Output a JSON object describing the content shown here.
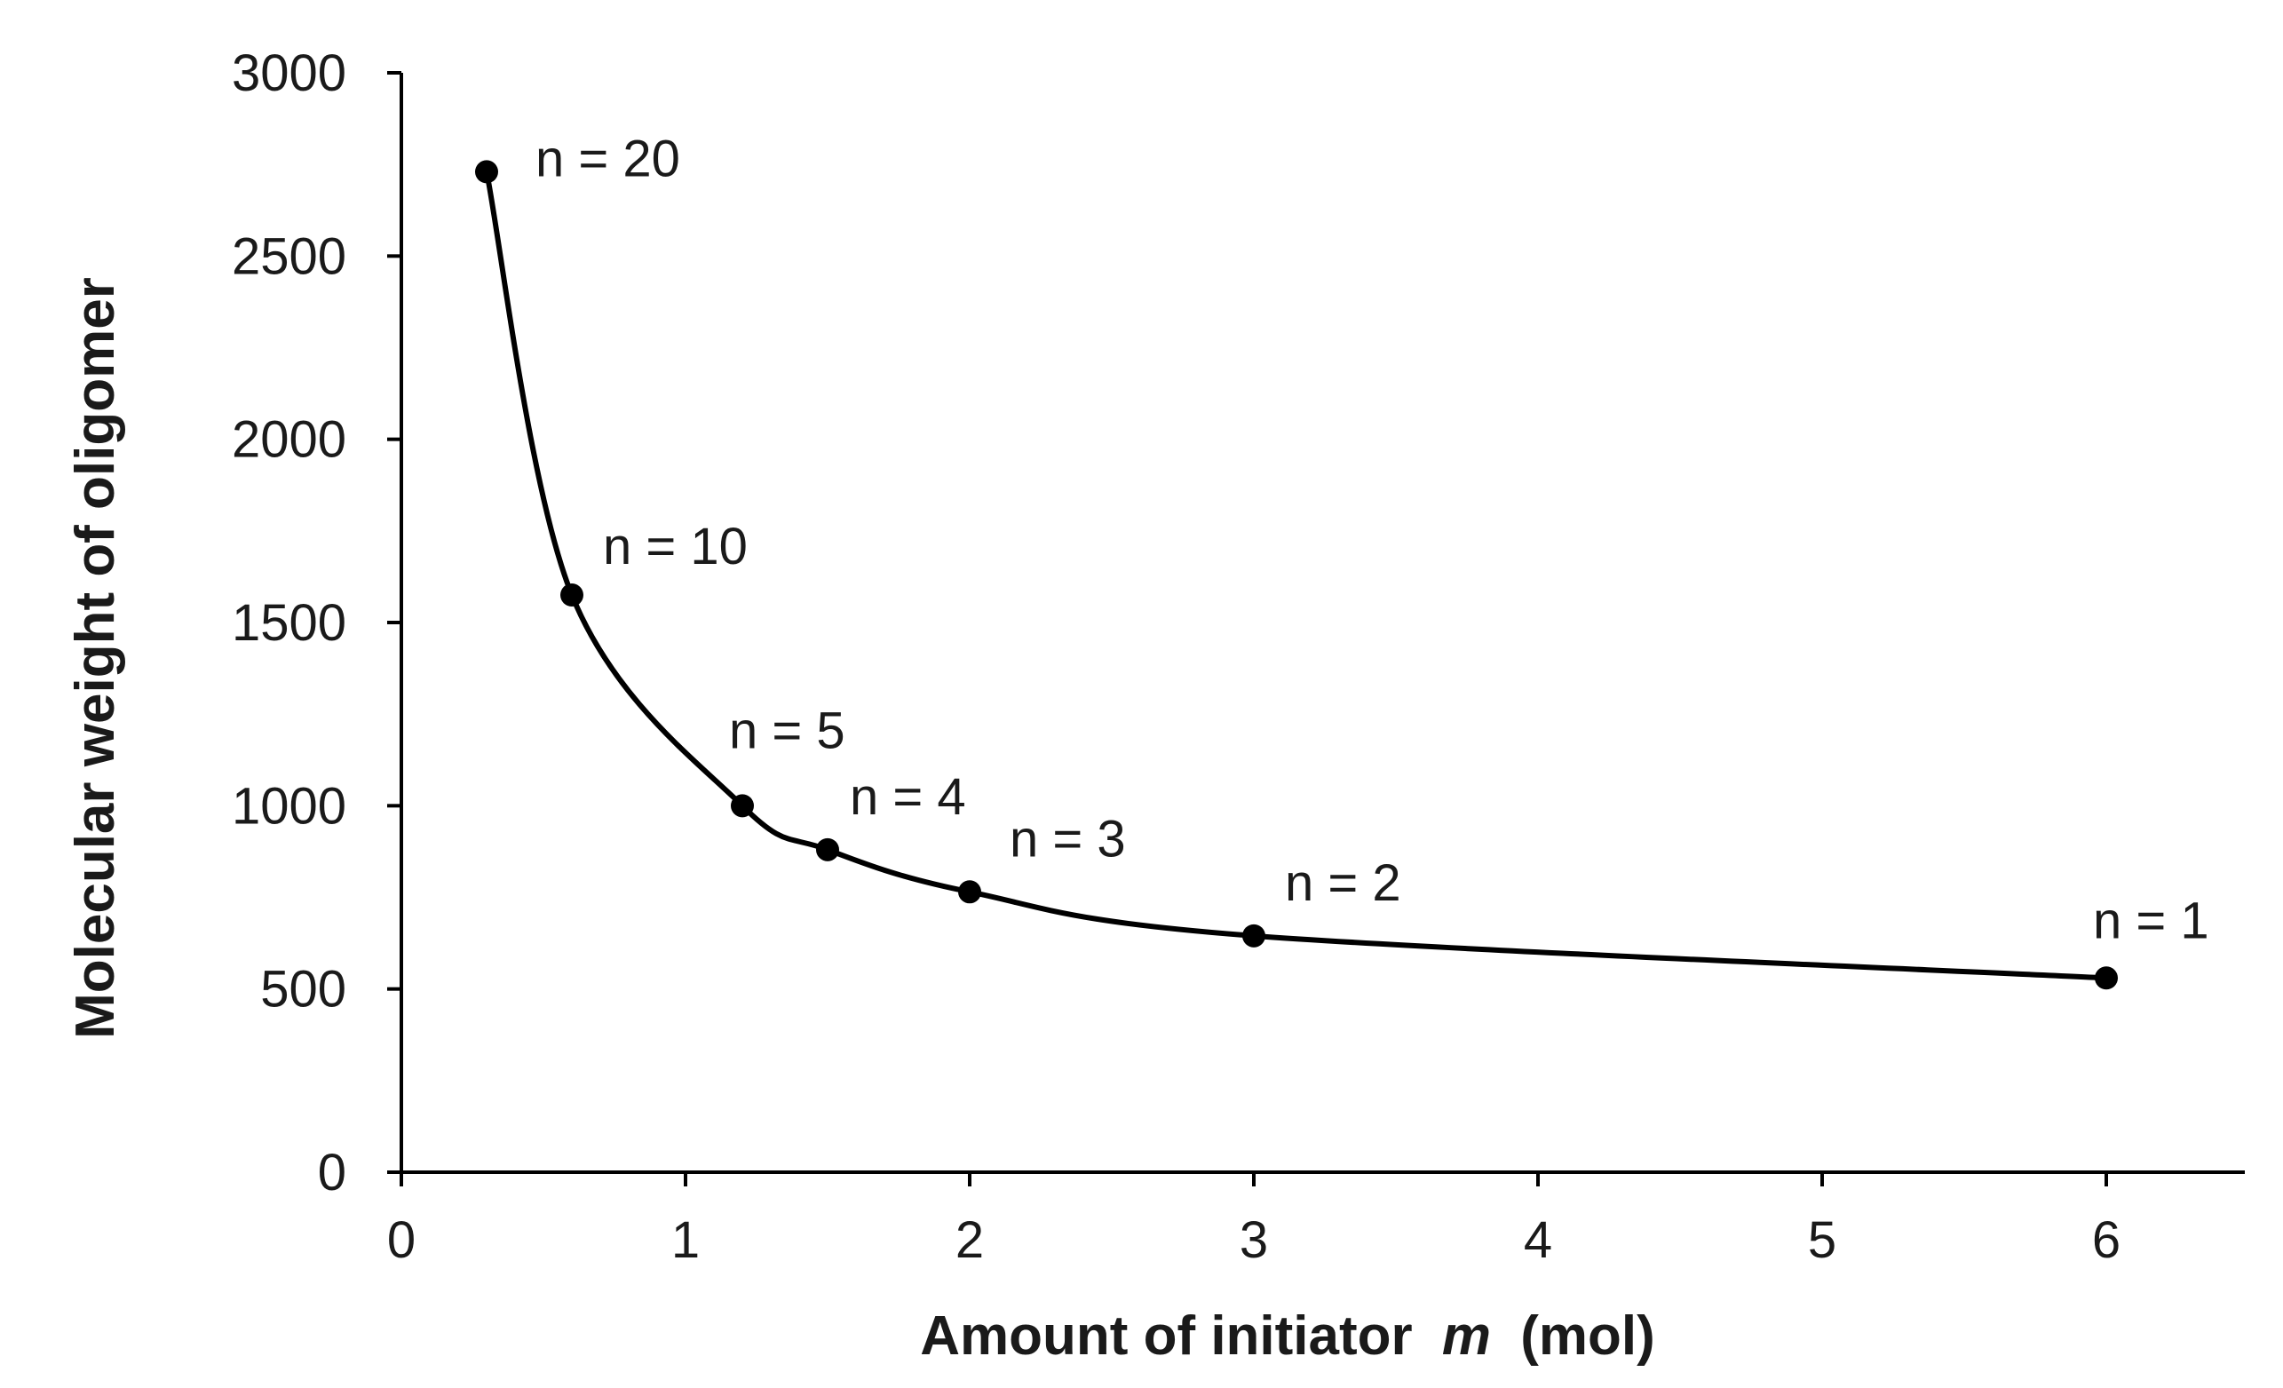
{
  "chart_data": {
    "type": "line",
    "title": "",
    "xlabel": "Amount of initiator",
    "xlabel_var": "m",
    "xlabel_unit": "(mol)",
    "ylabel": "Molecular weight of oligomer",
    "xlim": [
      0,
      6.5
    ],
    "ylim": [
      0,
      3000
    ],
    "x_ticks": [
      0,
      1,
      2,
      3,
      4,
      5,
      6
    ],
    "y_ticks": [
      0,
      500,
      1000,
      1500,
      2000,
      2500,
      3000
    ],
    "grid": false,
    "smooth": true,
    "series": [
      {
        "name": "oligomer",
        "color": "#000000",
        "x": [
          0.3,
          0.6,
          1.2,
          1.5,
          2,
          3,
          6
        ],
        "y": [
          2730,
          1575,
          1000,
          880,
          765,
          645,
          530
        ],
        "labels": [
          "n = 20",
          "n = 10",
          "n = 5",
          "n = 4",
          "n = 3",
          "n = 2",
          "n = 1"
        ]
      }
    ]
  }
}
